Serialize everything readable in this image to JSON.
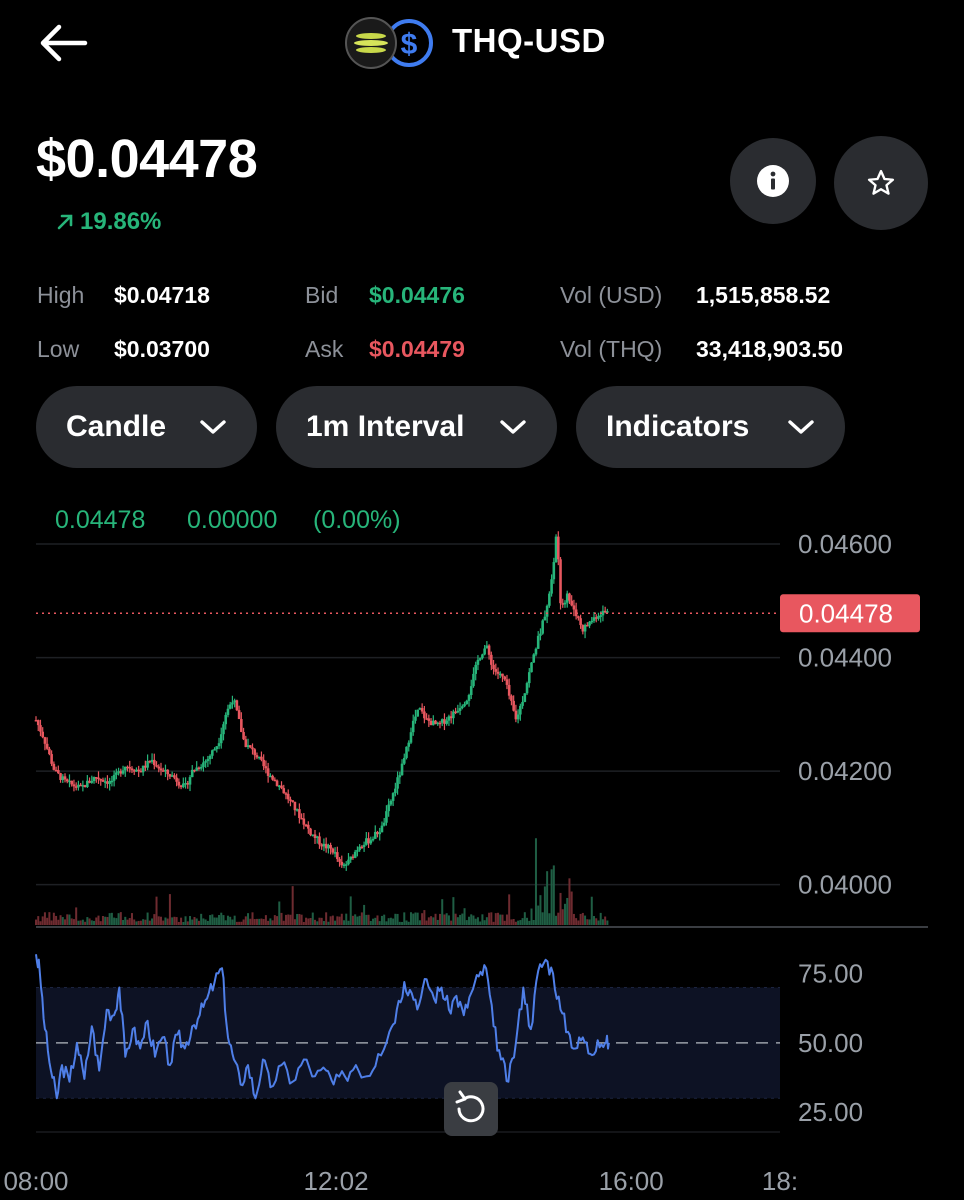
{
  "header": {
    "title": "THQ-USD",
    "back_icon": "arrow-left-icon",
    "logo_icons": [
      "thq-token-icon",
      "usd-coin-icon"
    ]
  },
  "price": {
    "value": "$0.04478",
    "change": "19.86%",
    "change_direction": "up"
  },
  "stats": {
    "high_label": "High",
    "high_value": "$0.04718",
    "low_label": "Low",
    "low_value": "$0.03700",
    "bid_label": "Bid",
    "bid_value": "$0.04476",
    "ask_label": "Ask",
    "ask_value": "$0.04479",
    "vol_usd_label": "Vol (USD)",
    "vol_usd_value": "1,515,858.52",
    "vol_thq_label": "Vol (THQ)",
    "vol_thq_value": "33,418,903.50"
  },
  "controls": {
    "chart_type": "Candle",
    "interval": "1m Interval",
    "indicators": "Indicators"
  },
  "colors": {
    "up": "#27b57a",
    "down": "#e8575f",
    "rsi_line": "#4f7fe8",
    "pill_bg": "#2a2c30"
  },
  "chart_data": {
    "type": "candlestick",
    "readout": {
      "last": "0.04478",
      "change": "0.00000",
      "change_pct": "(0.00%)"
    },
    "current_price_label": "0.04478",
    "current_price": 0.04478,
    "price_ticks": [
      "0.04600",
      "0.04400",
      "0.04200",
      "0.04000"
    ],
    "price_tick_values": [
      0.046,
      0.044,
      0.042,
      0.04
    ],
    "ylim": [
      0.0398,
      0.0466
    ],
    "time_ticks": [
      "08:00",
      "12:02",
      "16:00",
      "18:"
    ],
    "time_tick_hours": [
      8,
      12.033,
      16,
      18
    ],
    "time_range_hours": [
      8,
      18
    ],
    "close_path": [
      [
        8.0,
        0.0429
      ],
      [
        8.1,
        0.0426
      ],
      [
        8.25,
        0.042
      ],
      [
        8.4,
        0.0418
      ],
      [
        8.6,
        0.0417
      ],
      [
        8.8,
        0.0419
      ],
      [
        9.0,
        0.0418
      ],
      [
        9.2,
        0.0421
      ],
      [
        9.4,
        0.042
      ],
      [
        9.55,
        0.0422
      ],
      [
        9.7,
        0.042
      ],
      [
        9.85,
        0.0419
      ],
      [
        10.0,
        0.0417
      ],
      [
        10.1,
        0.042
      ],
      [
        10.3,
        0.0422
      ],
      [
        10.45,
        0.0425
      ],
      [
        10.55,
        0.043
      ],
      [
        10.65,
        0.0433
      ],
      [
        10.8,
        0.0425
      ],
      [
        10.95,
        0.0423
      ],
      [
        11.1,
        0.042
      ],
      [
        11.3,
        0.0417
      ],
      [
        11.5,
        0.0413
      ],
      [
        11.7,
        0.0409
      ],
      [
        11.85,
        0.0407
      ],
      [
        12.0,
        0.0406
      ],
      [
        12.1,
        0.0403
      ],
      [
        12.2,
        0.0404
      ],
      [
        12.35,
        0.0407
      ],
      [
        12.5,
        0.0408
      ],
      [
        12.65,
        0.041
      ],
      [
        12.8,
        0.0416
      ],
      [
        12.95,
        0.0422
      ],
      [
        13.05,
        0.0428
      ],
      [
        13.15,
        0.0431
      ],
      [
        13.25,
        0.0429
      ],
      [
        13.4,
        0.0428
      ],
      [
        13.6,
        0.043
      ],
      [
        13.8,
        0.0433
      ],
      [
        13.95,
        0.044
      ],
      [
        14.05,
        0.0442
      ],
      [
        14.15,
        0.0438
      ],
      [
        14.3,
        0.0436
      ],
      [
        14.45,
        0.0429
      ],
      [
        14.55,
        0.0433
      ],
      [
        14.7,
        0.0441
      ],
      [
        14.85,
        0.0448
      ],
      [
        14.95,
        0.0455
      ],
      [
        15.0,
        0.0463
      ],
      [
        15.05,
        0.0449
      ],
      [
        15.15,
        0.0451
      ],
      [
        15.25,
        0.0448
      ],
      [
        15.35,
        0.0445
      ],
      [
        15.5,
        0.0447
      ],
      [
        15.6,
        0.0448
      ],
      [
        15.7,
        0.0448
      ]
    ],
    "rsi": {
      "ticks": [
        "75.00",
        "50.00",
        "25.00"
      ],
      "tick_values": [
        75,
        50,
        25
      ],
      "ylim": [
        20,
        85
      ],
      "band": [
        30,
        70
      ],
      "midline": 50,
      "values": [
        [
          8.0,
          82
        ],
        [
          8.05,
          76
        ],
        [
          8.12,
          55
        ],
        [
          8.2,
          40
        ],
        [
          8.28,
          30
        ],
        [
          8.35,
          42
        ],
        [
          8.45,
          36
        ],
        [
          8.55,
          50
        ],
        [
          8.65,
          37
        ],
        [
          8.75,
          56
        ],
        [
          8.85,
          40
        ],
        [
          8.95,
          62
        ],
        [
          9.05,
          60
        ],
        [
          9.12,
          70
        ],
        [
          9.2,
          45
        ],
        [
          9.3,
          55
        ],
        [
          9.4,
          48
        ],
        [
          9.5,
          58
        ],
        [
          9.6,
          45
        ],
        [
          9.7,
          52
        ],
        [
          9.8,
          42
        ],
        [
          9.9,
          53
        ],
        [
          10.0,
          48
        ],
        [
          10.1,
          56
        ],
        [
          10.2,
          60
        ],
        [
          10.3,
          66
        ],
        [
          10.4,
          72
        ],
        [
          10.5,
          77
        ],
        [
          10.58,
          52
        ],
        [
          10.66,
          44
        ],
        [
          10.75,
          35
        ],
        [
          10.85,
          42
        ],
        [
          10.95,
          30
        ],
        [
          11.05,
          44
        ],
        [
          11.15,
          34
        ],
        [
          11.3,
          42
        ],
        [
          11.45,
          36
        ],
        [
          11.6,
          44
        ],
        [
          11.75,
          38
        ],
        [
          11.9,
          40
        ],
        [
          12.0,
          35
        ],
        [
          12.15,
          38
        ],
        [
          12.3,
          42
        ],
        [
          12.45,
          38
        ],
        [
          12.6,
          46
        ],
        [
          12.75,
          54
        ],
        [
          12.85,
          62
        ],
        [
          12.95,
          72
        ],
        [
          13.05,
          68
        ],
        [
          13.15,
          64
        ],
        [
          13.25,
          73
        ],
        [
          13.35,
          66
        ],
        [
          13.45,
          70
        ],
        [
          13.55,
          62
        ],
        [
          13.65,
          67
        ],
        [
          13.75,
          60
        ],
        [
          13.85,
          68
        ],
        [
          13.95,
          74
        ],
        [
          14.05,
          77
        ],
        [
          14.15,
          56
        ],
        [
          14.25,
          44
        ],
        [
          14.35,
          36
        ],
        [
          14.45,
          50
        ],
        [
          14.55,
          70
        ],
        [
          14.65,
          55
        ],
        [
          14.75,
          76
        ],
        [
          14.85,
          80
        ],
        [
          14.95,
          75
        ],
        [
          15.05,
          62
        ],
        [
          15.15,
          54
        ],
        [
          15.25,
          48
        ],
        [
          15.35,
          52
        ],
        [
          15.45,
          46
        ],
        [
          15.55,
          51
        ],
        [
          15.65,
          50
        ],
        [
          15.7,
          50
        ]
      ]
    }
  }
}
